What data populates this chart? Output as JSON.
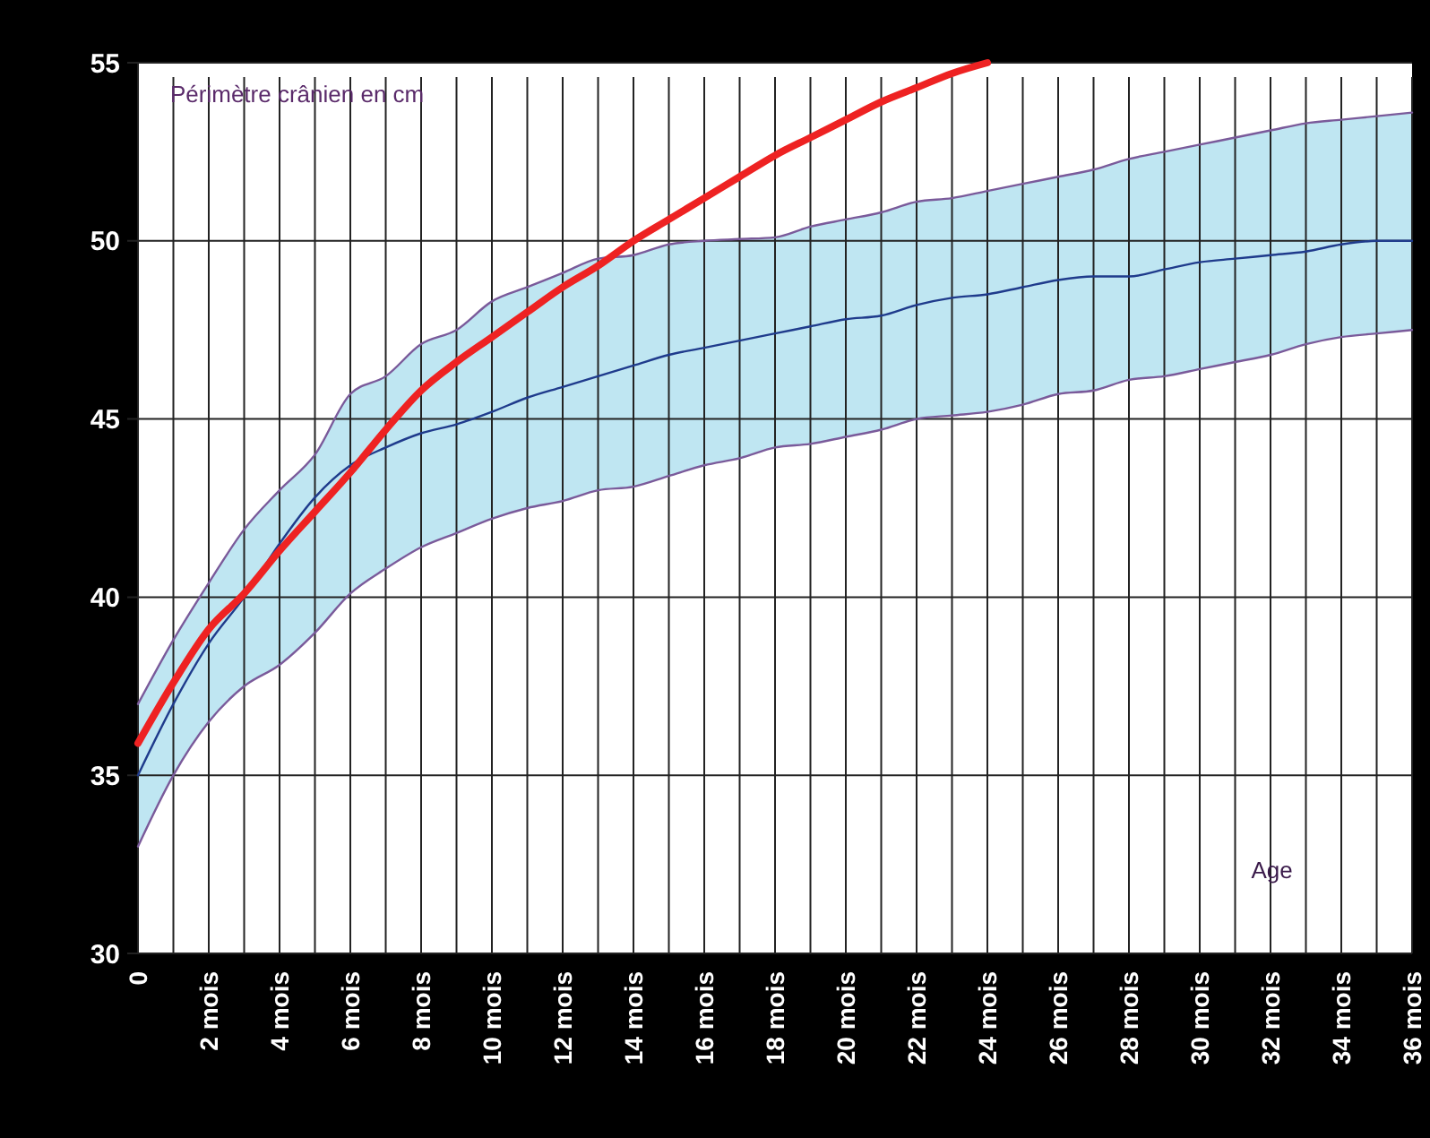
{
  "chart_data": {
    "type": "line",
    "ylabel": "Périmètre crânien en cm",
    "xlabel": "Age",
    "xlim": [
      0,
      36
    ],
    "ylim": [
      30,
      55
    ],
    "yticks": [
      30,
      35,
      40,
      45,
      50,
      55
    ],
    "xticks": [
      0,
      {
        "value": 1,
        "label": null
      },
      {
        "value": 2,
        "label": "2 mois"
      },
      {
        "value": 3,
        "label": null
      },
      {
        "value": 4,
        "label": "4 mois"
      },
      {
        "value": 5,
        "label": null
      },
      {
        "value": 6,
        "label": "6 mois"
      },
      {
        "value": 7,
        "label": null
      },
      {
        "value": 8,
        "label": "8 mois"
      },
      {
        "value": 9,
        "label": null
      },
      {
        "value": 10,
        "label": "10 mois"
      },
      {
        "value": 11,
        "label": null
      },
      {
        "value": 12,
        "label": "12 mois"
      },
      {
        "value": 13,
        "label": null
      },
      {
        "value": 14,
        "label": "14 mois"
      },
      {
        "value": 15,
        "label": null
      },
      {
        "value": 16,
        "label": "16 mois"
      },
      {
        "value": 17,
        "label": null
      },
      {
        "value": 18,
        "label": "18 mois"
      },
      {
        "value": 19,
        "label": null
      },
      {
        "value": 20,
        "label": "20 mois"
      },
      {
        "value": 21,
        "label": null
      },
      {
        "value": 22,
        "label": "22 mois"
      },
      {
        "value": 23,
        "label": null
      },
      {
        "value": 24,
        "label": "24 mois"
      },
      {
        "value": 25,
        "label": null
      },
      {
        "value": 26,
        "label": "26 mois"
      },
      {
        "value": 27,
        "label": null
      },
      {
        "value": 28,
        "label": "28 mois"
      },
      {
        "value": 29,
        "label": null
      },
      {
        "value": 30,
        "label": "30 mois"
      },
      {
        "value": 31,
        "label": null
      },
      {
        "value": 32,
        "label": "32 mois"
      },
      {
        "value": 33,
        "label": null
      },
      {
        "value": 34,
        "label": "34 mois"
      },
      {
        "value": 35,
        "label": null
      },
      {
        "value": 36,
        "label": "36 mois"
      }
    ],
    "grid": true,
    "x": [
      0,
      1,
      2,
      3,
      4,
      5,
      6,
      7,
      8,
      9,
      10,
      11,
      12,
      13,
      14,
      15,
      16,
      17,
      18,
      19,
      20,
      21,
      22,
      23,
      24,
      25,
      26,
      27,
      28,
      29,
      30,
      31,
      32,
      33,
      34,
      35,
      36
    ],
    "series": [
      {
        "color": "#7a5a9a",
        "values": [
          33.0,
          35.0,
          36.5,
          37.5,
          38.1,
          39.0,
          40.1,
          40.8,
          41.4,
          41.8,
          42.2,
          42.5,
          42.7,
          43.0,
          43.1,
          43.4,
          43.7,
          43.9,
          44.2,
          44.3,
          44.5,
          44.7,
          45.0,
          45.1,
          45.2,
          45.4,
          45.7,
          45.8,
          46.1,
          46.2,
          46.4,
          46.6,
          46.8,
          47.1,
          47.3,
          47.4,
          47.5
        ]
      },
      {
        "color": "#7a5a9a",
        "values": [
          37.0,
          38.8,
          40.4,
          41.9,
          43.0,
          44.0,
          45.7,
          46.2,
          47.1,
          47.5,
          48.3,
          48.7,
          49.1,
          49.5,
          49.6,
          49.9,
          50.0,
          50.05,
          50.1,
          50.4,
          50.6,
          50.8,
          51.1,
          51.2,
          51.4,
          51.6,
          51.8,
          52.0,
          52.3,
          52.5,
          52.7,
          52.9,
          53.1,
          53.3,
          53.4,
          53.5,
          53.6
        ]
      },
      {
        "color": "#1f3b8c",
        "values": [
          35.0,
          37.0,
          38.7,
          40.0,
          41.5,
          42.8,
          43.7,
          44.2,
          44.6,
          44.85,
          45.2,
          45.6,
          45.9,
          46.2,
          46.5,
          46.8,
          47.0,
          47.2,
          47.4,
          47.6,
          47.8,
          47.9,
          48.2,
          48.4,
          48.5,
          48.7,
          48.9,
          49.0,
          49.0,
          49.2,
          49.4,
          49.5,
          49.6,
          49.7,
          49.9,
          50.0,
          50.0
        ],
        "lower": [
          33.0,
          35.0,
          36.5,
          37.5,
          38.1,
          39.0,
          40.1,
          40.8,
          41.4,
          41.8,
          42.2,
          42.5,
          42.7,
          43.0,
          43.1,
          43.4,
          43.7,
          43.9,
          44.2,
          44.3,
          44.5,
          44.7,
          45.0,
          45.1,
          45.2,
          45.4,
          45.7,
          45.8,
          46.1,
          46.2,
          46.4,
          46.6,
          46.8,
          47.1,
          47.3,
          47.4,
          47.5
        ],
        "upper": [
          37.0,
          38.8,
          40.4,
          41.9,
          43.0,
          44.0,
          45.7,
          46.2,
          47.1,
          47.5,
          48.3,
          48.7,
          49.1,
          49.5,
          49.6,
          49.9,
          50.0,
          50.05,
          50.1,
          50.4,
          50.6,
          50.8,
          51.1,
          51.2,
          51.4,
          51.6,
          51.8,
          52.0,
          52.3,
          52.5,
          52.7,
          52.9,
          53.1,
          53.3,
          53.4,
          53.5,
          53.6
        ]
      },
      {
        "color": "#ee2222",
        "x": [
          0,
          1,
          2,
          3,
          4,
          5,
          6,
          7,
          8,
          9,
          10,
          11,
          12,
          13,
          14,
          15,
          16,
          17,
          18,
          19,
          20,
          21,
          22,
          23,
          24
        ],
        "values": [
          35.9,
          37.6,
          39.1,
          40.1,
          41.3,
          42.4,
          43.5,
          44.7,
          45.8,
          46.6,
          47.3,
          48.0,
          48.7,
          49.3,
          50.0,
          50.6,
          51.2,
          51.8,
          52.4,
          52.9,
          53.4,
          53.9,
          54.3,
          54.7,
          55.0
        ]
      }
    ]
  }
}
